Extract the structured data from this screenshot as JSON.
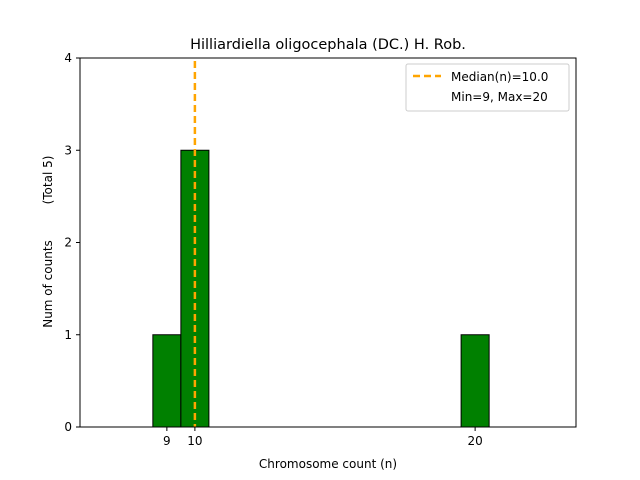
{
  "chart_data": {
    "type": "bar",
    "title": "Hilliardiella oligocephala (DC.) H. Rob.",
    "xlabel": "Chromosome count (n)",
    "ylabel": "Num of counts",
    "ylabel_note": "(Total 5)",
    "xlim": [
      5.9,
      23.6
    ],
    "ylim": [
      0,
      4
    ],
    "xticks": [
      9,
      10,
      20
    ],
    "yticks": [
      0,
      1,
      2,
      3,
      4
    ],
    "bars": [
      {
        "x": 9,
        "count": 1
      },
      {
        "x": 10,
        "count": 3
      },
      {
        "x": 20,
        "count": 1
      }
    ],
    "bar_width": 1,
    "median": 10.0,
    "legend": {
      "placement": "top-right",
      "median_label": "Median(n)=10.0",
      "range_label": "Min=9, Max=20"
    },
    "colors": {
      "bar": "#008000",
      "bar_edge": "#000000",
      "median_line": "#ffa500"
    },
    "grid": false
  }
}
